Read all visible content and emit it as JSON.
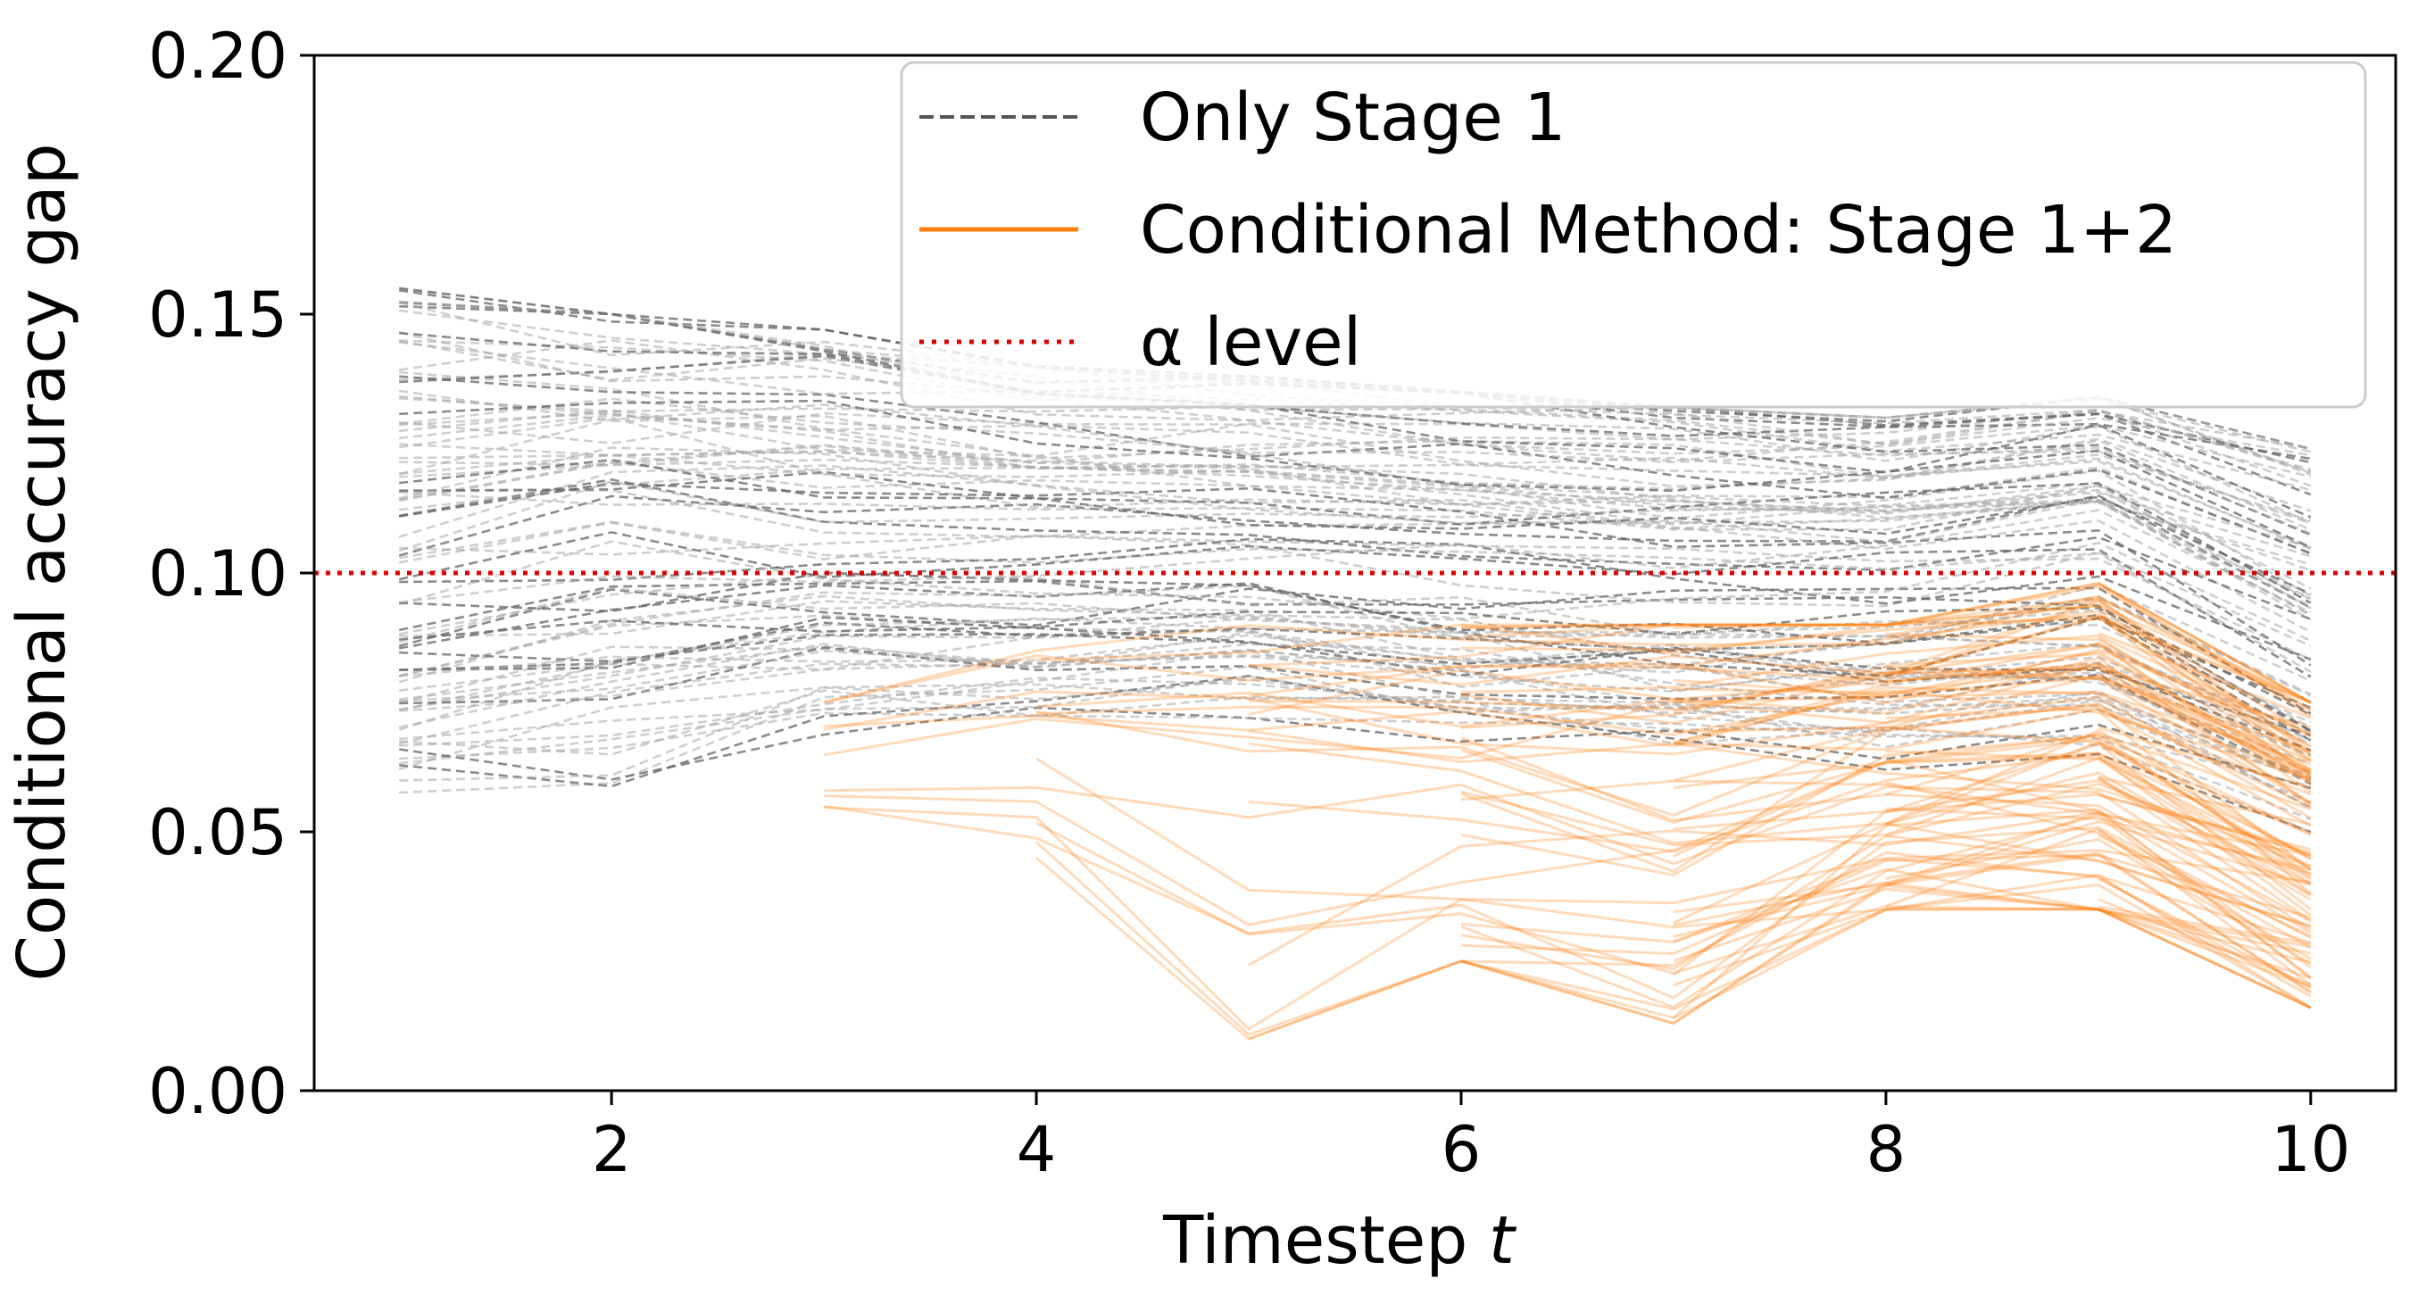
{
  "chart_data": {
    "type": "line",
    "xlabel": "Timestep",
    "xlabel_var": "t",
    "ylabel": "Conditional accuracy gap",
    "xlim": [
      0.6,
      10.4
    ],
    "ylim": [
      0.0,
      0.2
    ],
    "xticks": [
      2,
      4,
      6,
      8,
      10
    ],
    "xtick_labels": [
      "2",
      "4",
      "6",
      "8",
      "10"
    ],
    "yticks": [
      0.0,
      0.05,
      0.1,
      0.15,
      0.2
    ],
    "ytick_labels": [
      "0.00",
      "0.05",
      "0.10",
      "0.15",
      "0.20"
    ],
    "grid": false,
    "legend_position": "top-right",
    "legend": [
      {
        "label": "Only Stage 1",
        "style": "dashed",
        "color": "#555555"
      },
      {
        "label": "Conditional Method: Stage 1+2",
        "style": "solid",
        "color": "#ff7f0e"
      },
      {
        "label": "α level",
        "style": "dotted",
        "color": "#dd0000"
      }
    ],
    "alpha_level": 0.1,
    "series_groups": [
      {
        "name": "Only Stage 1",
        "color": "#555555",
        "style": "dashed",
        "approximate_envelope": true,
        "x": [
          1,
          2,
          3,
          4,
          5,
          6,
          7,
          8,
          9,
          10
        ],
        "min": [
          0.056,
          0.058,
          0.068,
          0.07,
          0.072,
          0.065,
          0.063,
          0.062,
          0.065,
          0.05
        ],
        "mean": [
          0.1,
          0.108,
          0.106,
          0.106,
          0.106,
          0.104,
          0.103,
          0.103,
          0.108,
          0.085
        ],
        "max": [
          0.155,
          0.15,
          0.147,
          0.14,
          0.138,
          0.135,
          0.132,
          0.13,
          0.134,
          0.124
        ]
      },
      {
        "name": "Conditional Method: Stage 1+2",
        "color": "#ff7f0e",
        "style": "solid",
        "approximate_envelope": true,
        "x": [
          3,
          4,
          5,
          6,
          7,
          8,
          9,
          10
        ],
        "min": [
          0.052,
          0.045,
          0.01,
          0.025,
          0.013,
          0.035,
          0.035,
          0.016
        ],
        "mean": [
          0.065,
          0.068,
          0.064,
          0.066,
          0.066,
          0.07,
          0.072,
          0.052
        ],
        "max": [
          0.075,
          0.085,
          0.09,
          0.09,
          0.09,
          0.09,
          0.098,
          0.075
        ]
      }
    ]
  }
}
